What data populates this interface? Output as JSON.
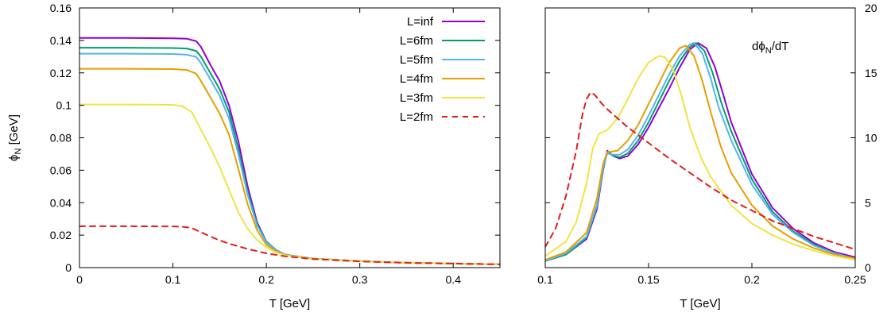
{
  "chart_data": [
    {
      "type": "line",
      "xlabel": "T [GeV]",
      "ylabel": "ϕN [GeV]",
      "ylabel_parts": {
        "base": "ϕ",
        "sub": "N",
        "rest": " [GeV]"
      },
      "xlim": [
        0,
        0.45
      ],
      "ylim": [
        0,
        0.16
      ],
      "xticks": [
        0,
        0.1,
        0.2,
        0.3,
        0.4
      ],
      "xtick_labels": [
        "0",
        "0.1",
        "0.2",
        "0.3",
        "0.4"
      ],
      "yticks": [
        0,
        0.02,
        0.04,
        0.06,
        0.08,
        0.1,
        0.12,
        0.14,
        0.16
      ],
      "ytick_labels": [
        "0",
        "0.02",
        "0.04",
        "0.06",
        "0.08",
        "0.1",
        "0.12",
        "0.14",
        "0.16"
      ],
      "legend_position": "top-right",
      "grid": false,
      "series": [
        {
          "name": "L=inf",
          "color": "#9400d3",
          "dash": "solid",
          "x": [
            0,
            0.05,
            0.1,
            0.115,
            0.125,
            0.13,
            0.14,
            0.15,
            0.16,
            0.17,
            0.18,
            0.19,
            0.2,
            0.21,
            0.22,
            0.25,
            0.3,
            0.35,
            0.4,
            0.45
          ],
          "y": [
            0.1415,
            0.1415,
            0.1413,
            0.141,
            0.1395,
            0.136,
            0.125,
            0.115,
            0.1,
            0.078,
            0.05,
            0.028,
            0.016,
            0.011,
            0.008,
            0.0055,
            0.004,
            0.003,
            0.0025,
            0.002
          ]
        },
        {
          "name": "L=6fm",
          "color": "#009e73",
          "dash": "solid",
          "x": [
            0,
            0.05,
            0.1,
            0.115,
            0.125,
            0.13,
            0.14,
            0.15,
            0.16,
            0.17,
            0.18,
            0.19,
            0.2,
            0.21,
            0.22,
            0.25,
            0.3,
            0.35,
            0.4,
            0.45
          ],
          "y": [
            0.1355,
            0.1355,
            0.1353,
            0.135,
            0.1335,
            0.13,
            0.12,
            0.11,
            0.096,
            0.073,
            0.047,
            0.027,
            0.016,
            0.011,
            0.008,
            0.0055,
            0.004,
            0.003,
            0.0025,
            0.002
          ]
        },
        {
          "name": "L=5fm",
          "color": "#56b4e9",
          "dash": "solid",
          "x": [
            0,
            0.05,
            0.1,
            0.115,
            0.125,
            0.13,
            0.14,
            0.15,
            0.16,
            0.17,
            0.18,
            0.19,
            0.2,
            0.21,
            0.22,
            0.25,
            0.3,
            0.35,
            0.4,
            0.45
          ],
          "y": [
            0.1318,
            0.1318,
            0.1316,
            0.1312,
            0.1298,
            0.126,
            0.116,
            0.106,
            0.092,
            0.07,
            0.045,
            0.026,
            0.0155,
            0.0108,
            0.008,
            0.0055,
            0.004,
            0.003,
            0.0025,
            0.002
          ]
        },
        {
          "name": "L=4fm",
          "color": "#e69f00",
          "dash": "solid",
          "x": [
            0,
            0.05,
            0.1,
            0.115,
            0.125,
            0.13,
            0.14,
            0.15,
            0.16,
            0.17,
            0.18,
            0.19,
            0.2,
            0.21,
            0.22,
            0.25,
            0.3,
            0.35,
            0.4,
            0.45
          ],
          "y": [
            0.1225,
            0.1225,
            0.1223,
            0.1218,
            0.1195,
            0.115,
            0.105,
            0.095,
            0.082,
            0.061,
            0.039,
            0.023,
            0.014,
            0.0102,
            0.0078,
            0.0054,
            0.004,
            0.003,
            0.0025,
            0.002
          ]
        },
        {
          "name": "L=3fm",
          "color": "#f0e442",
          "dash": "solid",
          "x": [
            0,
            0.05,
            0.1,
            0.11,
            0.12,
            0.13,
            0.14,
            0.15,
            0.16,
            0.17,
            0.18,
            0.19,
            0.2,
            0.21,
            0.22,
            0.25,
            0.3,
            0.35,
            0.4,
            0.45
          ],
          "y": [
            0.1005,
            0.1005,
            0.1003,
            0.0995,
            0.096,
            0.085,
            0.074,
            0.062,
            0.048,
            0.034,
            0.024,
            0.017,
            0.0125,
            0.0095,
            0.0075,
            0.0053,
            0.004,
            0.003,
            0.0025,
            0.002
          ]
        },
        {
          "name": "L=2fm",
          "color": "#e41a1c",
          "dash": "dashed",
          "x": [
            0,
            0.05,
            0.1,
            0.11,
            0.12,
            0.13,
            0.14,
            0.15,
            0.16,
            0.18,
            0.2,
            0.22,
            0.25,
            0.3,
            0.35,
            0.4,
            0.45
          ],
          "y": [
            0.0255,
            0.0255,
            0.0254,
            0.0252,
            0.0244,
            0.0218,
            0.0192,
            0.0168,
            0.0148,
            0.0115,
            0.0088,
            0.007,
            0.0053,
            0.0038,
            0.003,
            0.0025,
            0.002
          ]
        }
      ]
    },
    {
      "type": "line",
      "xlabel": "T [GeV]",
      "ylabel": "",
      "annotation": "dϕN/dT",
      "annotation_parts": {
        "pre": "dϕ",
        "sub": "N",
        "post": "/dT"
      },
      "xlim": [
        0.1,
        0.25
      ],
      "ylim": [
        0,
        20
      ],
      "xticks": [
        0.1,
        0.15,
        0.2,
        0.25
      ],
      "xtick_labels": [
        "0.1",
        "0.15",
        "0.2",
        "0.25"
      ],
      "yticks": [
        0,
        5,
        10,
        15,
        20
      ],
      "ytick_labels": [
        "0",
        "5",
        "10",
        "15",
        "20"
      ],
      "yaxis_side": "right",
      "grid": false,
      "series": [
        {
          "name": "L=inf",
          "color": "#9400d3",
          "dash": "solid",
          "x": [
            0.1,
            0.11,
            0.12,
            0.125,
            0.128,
            0.13,
            0.133,
            0.136,
            0.14,
            0.145,
            0.15,
            0.155,
            0.16,
            0.165,
            0.17,
            0.174,
            0.178,
            0.182,
            0.186,
            0.19,
            0.2,
            0.21,
            0.22,
            0.23,
            0.24,
            0.25
          ],
          "y": [
            0.5,
            1.0,
            2.2,
            4.5,
            7.5,
            9.0,
            8.6,
            8.4,
            8.6,
            9.5,
            10.8,
            12.3,
            13.8,
            15.4,
            16.8,
            17.3,
            16.9,
            15.5,
            13.4,
            11.2,
            7.2,
            4.6,
            3.0,
            1.9,
            1.2,
            0.8
          ]
        },
        {
          "name": "L=6fm",
          "color": "#009e73",
          "dash": "solid",
          "x": [
            0.1,
            0.11,
            0.12,
            0.125,
            0.128,
            0.13,
            0.133,
            0.136,
            0.14,
            0.145,
            0.15,
            0.155,
            0.16,
            0.165,
            0.17,
            0.173,
            0.177,
            0.181,
            0.185,
            0.19,
            0.2,
            0.21,
            0.22,
            0.23,
            0.24,
            0.25
          ],
          "y": [
            0.5,
            1.0,
            2.3,
            4.7,
            7.6,
            8.9,
            8.6,
            8.5,
            8.8,
            9.8,
            11.2,
            12.8,
            14.4,
            15.9,
            17.0,
            17.3,
            16.7,
            15.0,
            12.8,
            10.5,
            6.8,
            4.3,
            2.8,
            1.8,
            1.1,
            0.7
          ]
        },
        {
          "name": "L=5fm",
          "color": "#56b4e9",
          "dash": "solid",
          "x": [
            0.1,
            0.11,
            0.12,
            0.125,
            0.128,
            0.13,
            0.133,
            0.136,
            0.14,
            0.145,
            0.15,
            0.155,
            0.16,
            0.165,
            0.17,
            0.172,
            0.176,
            0.18,
            0.184,
            0.19,
            0.2,
            0.21,
            0.22,
            0.23,
            0.24,
            0.25
          ],
          "y": [
            0.5,
            1.1,
            2.4,
            4.8,
            7.7,
            8.8,
            8.7,
            8.7,
            9.1,
            10.2,
            11.7,
            13.3,
            14.9,
            16.3,
            17.2,
            17.3,
            16.5,
            14.6,
            12.3,
            9.8,
            6.4,
            4.1,
            2.7,
            1.7,
            1.1,
            0.7
          ]
        },
        {
          "name": "L=4fm",
          "color": "#e69f00",
          "dash": "solid",
          "x": [
            0.1,
            0.11,
            0.12,
            0.125,
            0.128,
            0.13,
            0.135,
            0.14,
            0.145,
            0.15,
            0.155,
            0.16,
            0.165,
            0.168,
            0.172,
            0.176,
            0.18,
            0.185,
            0.19,
            0.2,
            0.21,
            0.22,
            0.23,
            0.24,
            0.25
          ],
          "y": [
            0.6,
            1.2,
            2.7,
            5.3,
            8.0,
            8.9,
            9.0,
            9.8,
            11.0,
            12.6,
            14.2,
            15.8,
            16.9,
            17.1,
            16.3,
            14.4,
            12.0,
            9.3,
            7.3,
            4.8,
            3.2,
            2.2,
            1.5,
            1.0,
            0.7
          ]
        },
        {
          "name": "L=3fm",
          "color": "#f0e442",
          "dash": "solid",
          "x": [
            0.1,
            0.11,
            0.115,
            0.12,
            0.123,
            0.126,
            0.13,
            0.135,
            0.14,
            0.145,
            0.15,
            0.155,
            0.158,
            0.162,
            0.166,
            0.17,
            0.175,
            0.18,
            0.19,
            0.2,
            0.21,
            0.22,
            0.23,
            0.24,
            0.25
          ],
          "y": [
            0.9,
            2.0,
            3.5,
            6.5,
            9.2,
            10.3,
            10.6,
            11.5,
            13.0,
            14.6,
            15.8,
            16.3,
            16.2,
            15.2,
            13.2,
            10.8,
            8.6,
            7.0,
            4.8,
            3.4,
            2.5,
            1.8,
            1.3,
            0.9,
            0.6
          ]
        },
        {
          "name": "L=2fm",
          "color": "#e41a1c",
          "dash": "dashed",
          "x": [
            0.1,
            0.105,
            0.11,
            0.115,
            0.118,
            0.12,
            0.122,
            0.124,
            0.127,
            0.13,
            0.135,
            0.14,
            0.15,
            0.16,
            0.17,
            0.18,
            0.19,
            0.2,
            0.21,
            0.22,
            0.23,
            0.24,
            0.25
          ],
          "y": [
            1.6,
            3.0,
            5.5,
            9.0,
            11.8,
            13.0,
            13.5,
            13.3,
            12.7,
            12.2,
            11.5,
            10.8,
            9.6,
            8.4,
            7.3,
            6.2,
            5.2,
            4.4,
            3.6,
            3.0,
            2.4,
            1.9,
            1.4
          ]
        }
      ]
    }
  ]
}
